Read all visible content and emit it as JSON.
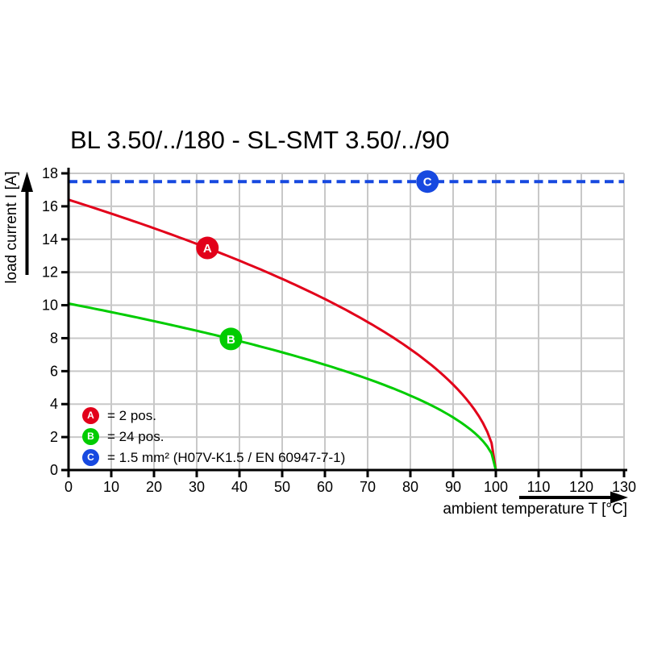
{
  "chart_data": {
    "type": "line",
    "title": "BL 3.50/../180 - SL-SMT 3.50/../90",
    "xlabel": "ambient temperature T [°C]",
    "ylabel": "load current I [A]",
    "xlim": [
      0,
      130
    ],
    "ylim": [
      0,
      18
    ],
    "x_ticks": [
      0,
      10,
      20,
      30,
      40,
      50,
      60,
      70,
      80,
      90,
      100,
      110,
      120,
      130
    ],
    "y_ticks": [
      0,
      2,
      4,
      6,
      8,
      10,
      12,
      14,
      16,
      18
    ],
    "grid": true,
    "legend_position": "inside bottom-left",
    "x": [
      0,
      10,
      20,
      30,
      40,
      50,
      60,
      70,
      80,
      90,
      100
    ],
    "series": [
      {
        "name": "A",
        "legend": "= 2 pos.",
        "color": "#e2001a",
        "line_style": "solid",
        "curve_model": "I = I0*sqrt(1 - T/t_zero)",
        "i0": 16.4,
        "t_zero": 100,
        "marker_t": 32.5,
        "values": [
          16.4,
          15.56,
          14.67,
          13.72,
          12.7,
          11.6,
          10.37,
          8.98,
          7.33,
          5.19,
          0
        ]
      },
      {
        "name": "B",
        "legend": "= 24 pos.",
        "color": "#00cc00",
        "line_style": "solid",
        "curve_model": "I = I0*sqrt(1 - T/t_zero)",
        "i0": 10.1,
        "t_zero": 100,
        "marker_t": 38,
        "values": [
          10.1,
          9.58,
          9.03,
          8.45,
          7.82,
          7.14,
          6.39,
          5.53,
          4.52,
          3.19,
          0
        ]
      },
      {
        "name": "C",
        "legend": "= 1.5 mm² (H07V-K1.5 / EN 60947-7-1)",
        "color": "#1749e0",
        "line_style": "dashed",
        "constant_value": 17.5,
        "x_range": [
          0,
          130
        ],
        "marker_t": 84
      }
    ]
  },
  "colors": {
    "axis": "#000000",
    "grid": "#c8c8c8",
    "background": "#ffffff",
    "marker_letter": "#ffffff"
  }
}
